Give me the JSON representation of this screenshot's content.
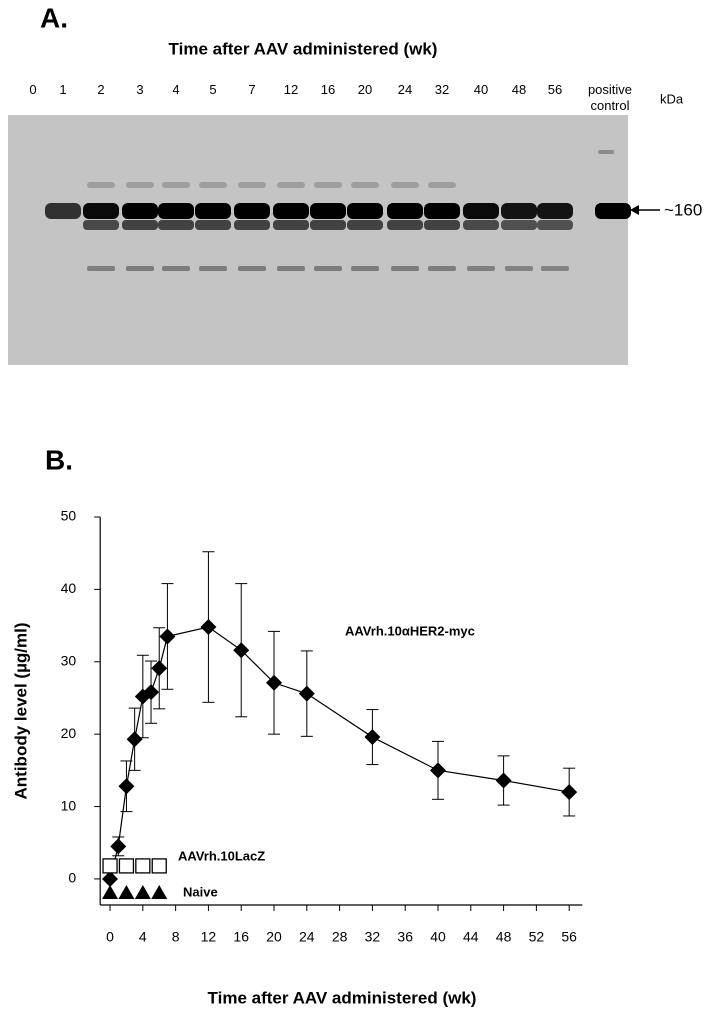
{
  "panel_a": {
    "label": "A.",
    "title": "Time after AAV administered (wk)",
    "lanes": [
      "0",
      "1",
      "2",
      "3",
      "4",
      "5",
      "7",
      "12",
      "16",
      "20",
      "24",
      "32",
      "40",
      "48",
      "56",
      "positive control"
    ],
    "unit": "kDa",
    "marker": "~160"
  },
  "chart_data": {
    "type": "line",
    "label": "B.",
    "x_label": "Time after AAV administered (wk)",
    "y_label": "Antibody level (µg/ml)",
    "xlim": [
      -1.2,
      57.6
    ],
    "xticks": [
      0,
      4,
      8,
      12,
      16,
      20,
      24,
      28,
      32,
      36,
      40,
      44,
      48,
      52,
      56
    ],
    "ylim": [
      -3.6,
      50
    ],
    "yticks": [
      0,
      10,
      20,
      30,
      40,
      50
    ],
    "series": [
      {
        "name": "AAVrh.10αHER2-myc",
        "color": "#000000",
        "marker": "diamond",
        "line": true,
        "x": [
          0,
          1,
          2,
          3,
          4,
          5,
          6,
          7,
          12,
          16,
          20,
          24,
          32,
          40,
          48,
          56
        ],
        "values": [
          0,
          4.5,
          12.8,
          19.3,
          25.2,
          25.8,
          29.1,
          33.5,
          34.8,
          31.6,
          27.1,
          25.6,
          19.6,
          15.0,
          13.6,
          12.0
        ],
        "errors": [
          0,
          1.3,
          3.5,
          4.3,
          5.7,
          4.3,
          5.6,
          7.3,
          10.4,
          9.2,
          7.1,
          5.9,
          3.8,
          4.0,
          3.4,
          3.3
        ]
      },
      {
        "name": "AAVrh.10LacZ",
        "color": "#000000",
        "marker": "square-open",
        "line": false,
        "x": [
          0,
          2,
          4,
          6
        ],
        "values": [
          1.8,
          1.8,
          1.8,
          1.8
        ]
      },
      {
        "name": "Naive",
        "color": "#000000",
        "marker": "triangle",
        "line": false,
        "x": [
          0,
          2,
          4,
          6
        ],
        "values": [
          -1.8,
          -1.8,
          -1.8,
          -1.8
        ]
      }
    ]
  }
}
